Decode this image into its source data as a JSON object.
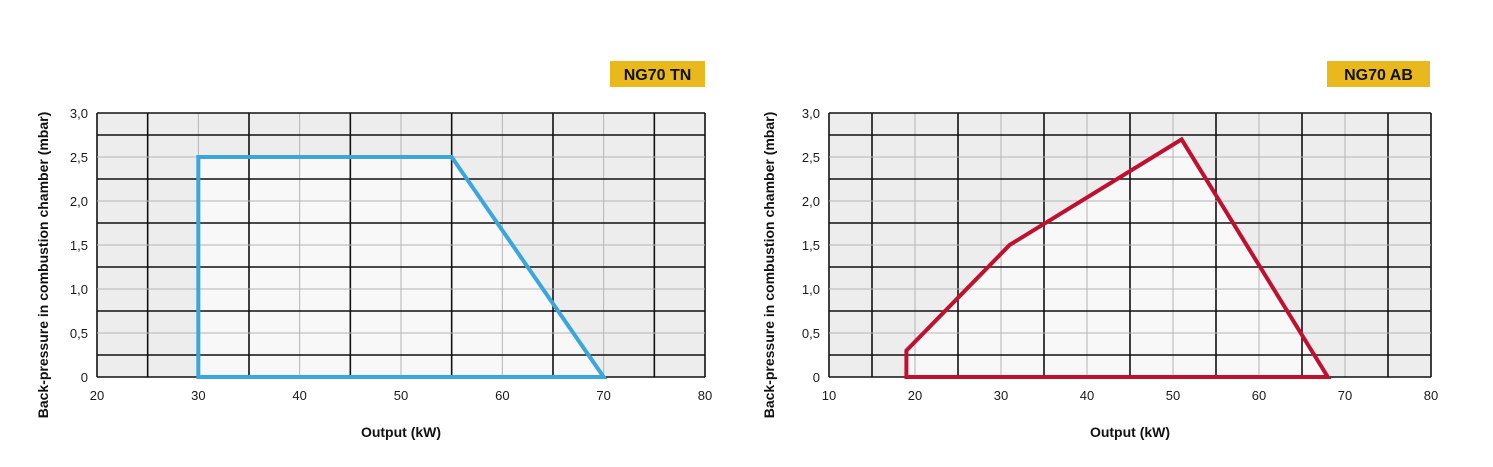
{
  "chart_data": [
    {
      "type": "area",
      "badge": "NG70 TN",
      "xlabel": "Output (kW)",
      "ylabel": "Back-pressure in combustion chamber (mbar)",
      "xlim": [
        20,
        80
      ],
      "ylim": [
        0,
        3.0
      ],
      "xticks": [
        "20",
        "30",
        "40",
        "50",
        "60",
        "70",
        "80"
      ],
      "yticks": [
        "0",
        "0,5",
        "1,0",
        "1,5",
        "2,0",
        "2,5",
        "3,0"
      ],
      "grid": "on",
      "series": [
        {
          "points": [
            [
              30,
              0
            ],
            [
              30,
              2.5
            ],
            [
              55,
              2.5
            ],
            [
              70,
              0
            ]
          ],
          "color": "#3aa6dc"
        }
      ]
    },
    {
      "type": "area",
      "badge": "NG70 AB",
      "xlabel": "Output (kW)",
      "ylabel": "Back-pressure in combustion chamber (mbar)",
      "xlim": [
        10,
        80
      ],
      "ylim": [
        0,
        3.0
      ],
      "xticks": [
        "10",
        "20",
        "30",
        "40",
        "50",
        "60",
        "70",
        "80"
      ],
      "yticks": [
        "0",
        "0,5",
        "1,0",
        "1,5",
        "2,0",
        "2,5",
        "3,0"
      ],
      "grid": "on",
      "series": [
        {
          "points": [
            [
              19,
              0
            ],
            [
              19,
              0.3
            ],
            [
              31,
              1.5
            ],
            [
              51,
              2.7
            ],
            [
              68,
              0
            ]
          ],
          "color": "#c0102f"
        }
      ]
    }
  ],
  "colors": {
    "badge_bg": "#e8b81c",
    "grid_major": "#111111",
    "grid_minor": "#b5b5b5",
    "plot_bg": "#ededed",
    "envelope_fill": "#f8f8f8"
  }
}
